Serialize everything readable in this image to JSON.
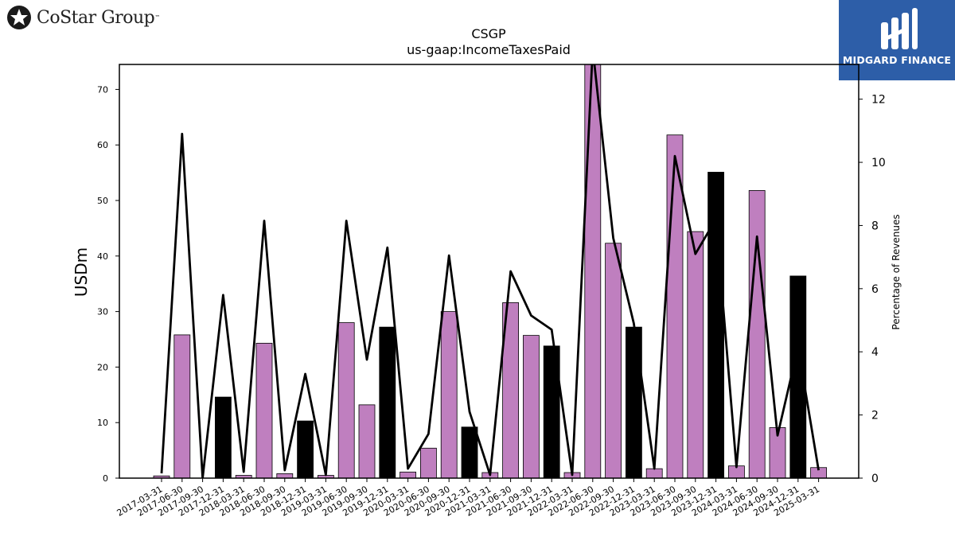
{
  "brand": {
    "company_logo_text": "CoStar Group",
    "company_logo_tm": "™",
    "badge_text": "MIDGARD FINANCE",
    "badge_color": "#2d5ea8"
  },
  "chart_data": {
    "type": "bar",
    "title": "CSGP",
    "subtitle": "us-gaap:IncomeTaxesPaid",
    "ylabel": "USDm",
    "y2label": "Percentage of Revenues",
    "ylim": [
      0,
      74.5
    ],
    "y2lim": [
      0,
      13.1
    ],
    "yticks": [
      0,
      10,
      20,
      30,
      40,
      50,
      60,
      70
    ],
    "y2ticks": [
      0,
      2,
      4,
      6,
      8,
      10,
      12
    ],
    "bar_color_quarter": "#bf7fbf",
    "bar_color_year_end": "#000000",
    "line_color": "#000000",
    "categories": [
      "2017-03-31",
      "2017-06-30",
      "2017-09-30",
      "2017-12-31",
      "2018-03-31",
      "2018-06-30",
      "2018-09-30",
      "2018-12-31",
      "2019-03-31",
      "2019-06-30",
      "2019-09-30",
      "2019-12-31",
      "2020-03-31",
      "2020-06-30",
      "2020-09-30",
      "2020-12-31",
      "2021-03-31",
      "2021-06-30",
      "2021-09-30",
      "2021-12-31",
      "2022-03-31",
      "2022-06-30",
      "2022-09-30",
      "2022-12-31",
      "2023-03-31",
      "2023-06-30",
      "2023-09-30",
      "2023-12-31",
      "2024-03-31",
      "2024-06-30",
      "2024-09-30",
      "2024-12-31",
      "2025-03-31"
    ],
    "series": [
      {
        "values": [
          0.4,
          25.8,
          0,
          14.6,
          0.5,
          24.3,
          0.8,
          10.3,
          0.5,
          28.0,
          13.2,
          27.2,
          1.1,
          5.4,
          30.0,
          9.2,
          1.0,
          31.6,
          25.7,
          23.8,
          1.0,
          75.0,
          42.3,
          27.2,
          1.7,
          61.8,
          44.4,
          55.1,
          2.2,
          51.8,
          9.1,
          36.4,
          1.9
        ],
        "year_end": [
          false,
          false,
          false,
          true,
          false,
          false,
          false,
          true,
          false,
          false,
          false,
          true,
          false,
          false,
          false,
          true,
          false,
          false,
          false,
          true,
          false,
          false,
          false,
          true,
          false,
          false,
          false,
          true,
          false,
          false,
          false,
          true,
          false
        ]
      },
      {
        "values": [
          0.15,
          10.9,
          0,
          5.8,
          0.2,
          8.15,
          0.25,
          3.3,
          0.1,
          8.15,
          3.75,
          7.3,
          0.3,
          1.4,
          7.05,
          2.1,
          0.1,
          6.55,
          5.15,
          4.7,
          0.1,
          13.6,
          7.6,
          4.9,
          0.3,
          10.2,
          7.1,
          8.2,
          0.35,
          7.65,
          1.35,
          4.15,
          0.25
        ]
      }
    ]
  }
}
